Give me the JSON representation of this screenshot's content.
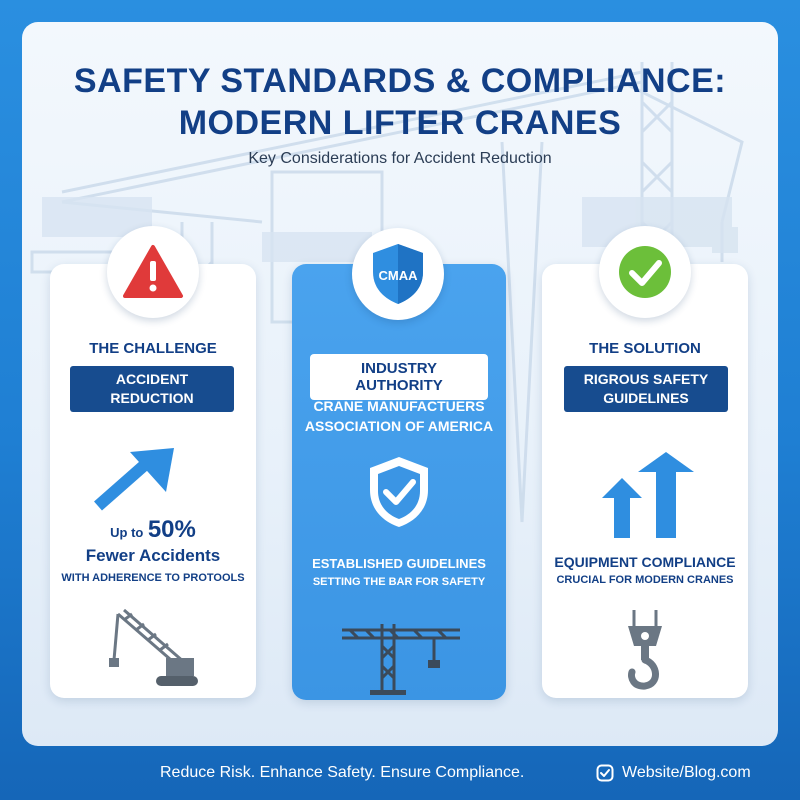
{
  "header": {
    "title_line1": "SAFETY STANDARDS & COMPLIANCE:",
    "title_line2": "MODERN LIFTER CRANES",
    "subtitle": "Key Considerations for Accident Reduction"
  },
  "cards": {
    "challenge": {
      "icon": "warning-icon",
      "heading": "THE CHALLENGE",
      "pill_line1": "ACCIDENT",
      "pill_line2": "REDUCTION",
      "stat_prefix": "Up to",
      "stat_value": "50%",
      "stat_label": "Fewer Accidents",
      "stat_note": "WITH ADHERENCE TO PROTOOLS",
      "illustration": "crawler-crane-icon"
    },
    "authority": {
      "badge_text": "CMAA",
      "heading": "INDUSTRY AUTHORITY",
      "name_line1": "CRANE MANUFACTUERS",
      "name_line2": "ASSOCIATION OF AMERICA",
      "icon": "shield-check-icon",
      "line1": "ESTABLISHED GUIDELINES",
      "line2": "SETTING THE BAR FOR SAFETY",
      "illustration": "tower-crane-icon"
    },
    "solution": {
      "icon": "checkmark-icon",
      "heading": "THE SOLUTION",
      "pill_line1": "RIGROUS SAFETY",
      "pill_line2": "GUIDELINES",
      "line1": "EQUIPMENT COMPLIANCE",
      "line2": "CRUCIAL FOR MODERN CRANES",
      "illustration": "crane-hook-icon"
    }
  },
  "footer": {
    "tagline": "Reduce Risk. Enhance Safety. Ensure Compliance.",
    "link_icon": "link-badge-icon",
    "link_text": "Website/Blog.com"
  },
  "colors": {
    "navy": "#123f86",
    "pill": "#174c8f",
    "accent_blue": "#3b95e4",
    "warning_red": "#e03a3a",
    "success_green": "#6cbf3a"
  }
}
